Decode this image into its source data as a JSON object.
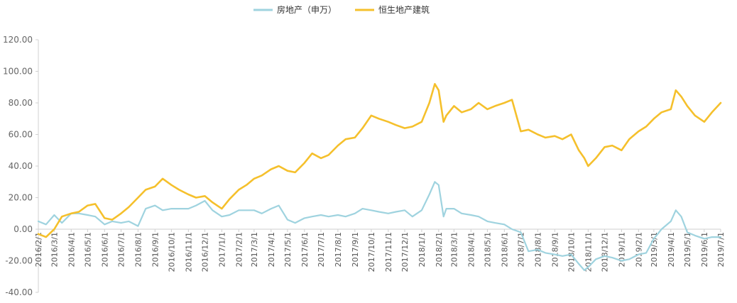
{
  "chart_data": {
    "type": "line",
    "title": "",
    "xlabel": "",
    "ylabel": "",
    "ylim": [
      -40,
      120
    ],
    "yticks": [
      -40,
      -20,
      0,
      20,
      40,
      60,
      80,
      100,
      120
    ],
    "ytick_labels": [
      "-40.00",
      "-20.00",
      "0.00",
      "20.00",
      "40.00",
      "60.00",
      "80.00",
      "100.00",
      "120.00"
    ],
    "x_range": [
      "2016-02-01",
      "2019-07-01"
    ],
    "xtick_labels": [
      "2016/2/1",
      "2016/3/1",
      "2016/4/1",
      "2016/5/1",
      "2016/6/1",
      "2016/7/1",
      "2016/8/1",
      "2016/9/1",
      "2016/10/1",
      "2016/11/1",
      "2016/12/1",
      "2017/1/1",
      "2017/2/1",
      "2017/3/1",
      "2017/4/1",
      "2017/5/1",
      "2017/6/1",
      "2017/7/1",
      "2017/8/1",
      "2017/9/1",
      "2017/10/1",
      "2017/11/1",
      "2017/12/1",
      "2018/1/1",
      "2018/2/1",
      "2018/3/1",
      "2018/4/1",
      "2018/5/1",
      "2018/6/1",
      "2018/7/1",
      "2018/8/1",
      "2018/9/1",
      "2018/10/1",
      "2018/11/1",
      "2018/12/1",
      "2019/1/1",
      "2019/2/1",
      "2019/3/1",
      "2019/4/1",
      "2019/5/1",
      "2019/6/1",
      "2019/7/1"
    ],
    "grid": false,
    "legend_position": "top-center",
    "series": [
      {
        "name": "房地产（申万）",
        "color": "#9fd3df",
        "x": [
          "2016-02-01",
          "2016-02-15",
          "2016-03-01",
          "2016-03-15",
          "2016-04-01",
          "2016-04-15",
          "2016-05-01",
          "2016-05-15",
          "2016-06-01",
          "2016-06-15",
          "2016-07-01",
          "2016-07-15",
          "2016-08-01",
          "2016-08-15",
          "2016-09-01",
          "2016-09-15",
          "2016-10-01",
          "2016-10-15",
          "2016-11-01",
          "2016-11-15",
          "2016-12-01",
          "2016-12-15",
          "2017-01-01",
          "2017-01-15",
          "2017-02-01",
          "2017-02-15",
          "2017-03-01",
          "2017-03-15",
          "2017-04-01",
          "2017-04-15",
          "2017-05-01",
          "2017-05-15",
          "2017-06-01",
          "2017-06-15",
          "2017-07-01",
          "2017-07-15",
          "2017-08-01",
          "2017-08-15",
          "2017-09-01",
          "2017-09-15",
          "2017-10-01",
          "2017-10-15",
          "2017-11-01",
          "2017-11-15",
          "2017-12-01",
          "2017-12-15",
          "2018-01-01",
          "2018-01-15",
          "2018-01-25",
          "2018-02-01",
          "2018-02-10",
          "2018-02-15",
          "2018-03-01",
          "2018-03-15",
          "2018-04-01",
          "2018-04-15",
          "2018-05-01",
          "2018-05-15",
          "2018-06-01",
          "2018-06-15",
          "2018-07-01",
          "2018-07-15",
          "2018-08-01",
          "2018-08-15",
          "2018-09-01",
          "2018-09-15",
          "2018-10-01",
          "2018-10-15",
          "2018-10-25",
          "2018-11-01",
          "2018-11-15",
          "2018-12-01",
          "2018-12-15",
          "2019-01-01",
          "2019-01-15",
          "2019-02-01",
          "2019-02-15",
          "2019-03-01",
          "2019-03-15",
          "2019-04-01",
          "2019-04-10",
          "2019-04-20",
          "2019-05-01",
          "2019-05-15",
          "2019-06-01",
          "2019-06-15",
          "2019-07-01"
        ],
        "values": [
          5,
          3,
          9,
          4,
          10,
          10,
          9,
          8,
          3,
          5,
          4,
          5,
          2,
          13,
          15,
          12,
          13,
          13,
          13,
          15,
          18,
          12,
          8,
          9,
          12,
          12,
          12,
          10,
          13,
          15,
          6,
          4,
          7,
          8,
          9,
          8,
          9,
          8,
          10,
          13,
          12,
          11,
          10,
          11,
          12,
          8,
          12,
          22,
          30,
          28,
          8,
          13,
          13,
          10,
          9,
          8,
          5,
          4,
          3,
          0,
          -2,
          -14,
          -13,
          -15,
          -16,
          -17,
          -16,
          -22,
          -26,
          -24,
          -19,
          -17,
          -18,
          -20,
          -19,
          -16,
          -15,
          -6,
          0,
          5,
          12,
          8,
          -2,
          -4,
          -6,
          -5,
          -5
        ]
      },
      {
        "name": "恒生地产建筑",
        "color": "#f5c02c",
        "x": [
          "2016-02-01",
          "2016-02-15",
          "2016-03-01",
          "2016-03-15",
          "2016-04-01",
          "2016-04-15",
          "2016-05-01",
          "2016-05-15",
          "2016-06-01",
          "2016-06-15",
          "2016-07-01",
          "2016-07-15",
          "2016-08-01",
          "2016-08-15",
          "2016-09-01",
          "2016-09-15",
          "2016-10-01",
          "2016-10-15",
          "2016-11-01",
          "2016-11-15",
          "2016-12-01",
          "2016-12-15",
          "2017-01-01",
          "2017-01-15",
          "2017-02-01",
          "2017-02-15",
          "2017-03-01",
          "2017-03-15",
          "2017-04-01",
          "2017-04-15",
          "2017-05-01",
          "2017-05-15",
          "2017-06-01",
          "2017-06-15",
          "2017-07-01",
          "2017-07-15",
          "2017-08-01",
          "2017-08-15",
          "2017-09-01",
          "2017-09-15",
          "2017-10-01",
          "2017-10-15",
          "2017-11-01",
          "2017-11-15",
          "2017-12-01",
          "2017-12-15",
          "2018-01-01",
          "2018-01-15",
          "2018-01-25",
          "2018-02-01",
          "2018-02-10",
          "2018-02-15",
          "2018-03-01",
          "2018-03-15",
          "2018-04-01",
          "2018-04-15",
          "2018-05-01",
          "2018-05-15",
          "2018-06-01",
          "2018-06-15",
          "2018-07-01",
          "2018-07-15",
          "2018-08-01",
          "2018-08-15",
          "2018-09-01",
          "2018-09-15",
          "2018-10-01",
          "2018-10-15",
          "2018-10-25",
          "2018-11-01",
          "2018-11-15",
          "2018-12-01",
          "2018-12-15",
          "2019-01-01",
          "2019-01-15",
          "2019-02-01",
          "2019-02-15",
          "2019-03-01",
          "2019-03-15",
          "2019-04-01",
          "2019-04-10",
          "2019-04-20",
          "2019-05-01",
          "2019-05-15",
          "2019-06-01",
          "2019-06-15",
          "2019-07-01"
        ],
        "values": [
          -3,
          -5,
          0,
          8,
          10,
          11,
          15,
          16,
          7,
          6,
          10,
          14,
          20,
          25,
          27,
          32,
          28,
          25,
          22,
          20,
          21,
          17,
          13,
          19,
          25,
          28,
          32,
          34,
          38,
          40,
          37,
          36,
          42,
          48,
          45,
          47,
          53,
          57,
          58,
          64,
          72,
          70,
          68,
          66,
          64,
          65,
          68,
          80,
          92,
          88,
          68,
          72,
          78,
          74,
          76,
          80,
          76,
          78,
          80,
          82,
          62,
          63,
          60,
          58,
          59,
          57,
          60,
          50,
          45,
          40,
          45,
          52,
          53,
          50,
          57,
          62,
          65,
          70,
          74,
          76,
          88,
          84,
          78,
          72,
          68,
          74,
          80
        ]
      }
    ]
  }
}
